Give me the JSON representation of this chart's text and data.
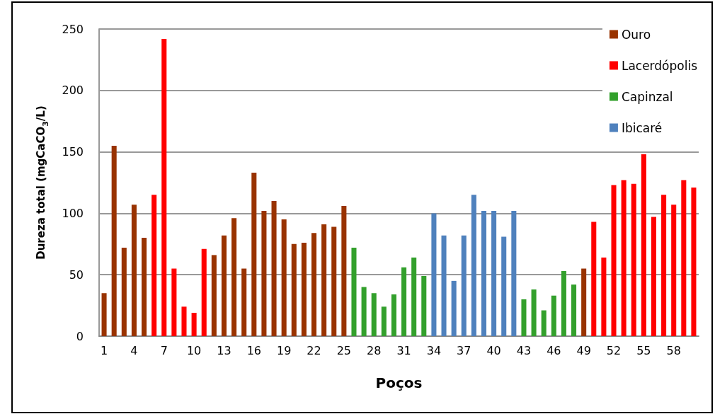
{
  "chart_data": {
    "type": "bar",
    "xlabel": "Poços",
    "ylabel": "Dureza total (mgCaCO$_{3}$/L)",
    "categories": [
      "1",
      null,
      null,
      "4",
      null,
      null,
      "7",
      null,
      null,
      "10",
      null,
      null,
      "13",
      null,
      null,
      "16",
      null,
      null,
      "19",
      null,
      null,
      "22",
      null,
      null,
      "25",
      null,
      null,
      "28",
      null,
      null,
      "31",
      null,
      null,
      "34",
      null,
      null,
      "37",
      null,
      null,
      "40",
      null,
      null,
      "43",
      null,
      null,
      "46",
      null,
      null,
      "49",
      null,
      null,
      "52",
      null,
      null,
      "55",
      null,
      null,
      "58",
      null,
      null
    ],
    "series": [
      {
        "name": "Ouro",
        "color": "#993300",
        "values": [
          35,
          155,
          72,
          107,
          80,
          null,
          null,
          null,
          null,
          null,
          null,
          66,
          82,
          96,
          55,
          133,
          102,
          110,
          95,
          75,
          76,
          84,
          91,
          89,
          106,
          null,
          null,
          null,
          null,
          null,
          null,
          null,
          null,
          null,
          null,
          null,
          null,
          null,
          null,
          null,
          null,
          null,
          null,
          null,
          null,
          null,
          null,
          null,
          55,
          null,
          null,
          null,
          null,
          null,
          null,
          null,
          null,
          null,
          null,
          null
        ]
      },
      {
        "name": "Lacerdópolis",
        "color": "#ff0000",
        "values": [
          null,
          null,
          null,
          null,
          null,
          115,
          242,
          55,
          24,
          19,
          71,
          null,
          null,
          null,
          null,
          null,
          null,
          null,
          null,
          null,
          null,
          null,
          null,
          null,
          null,
          null,
          null,
          null,
          null,
          null,
          null,
          null,
          null,
          null,
          null,
          null,
          null,
          null,
          null,
          null,
          null,
          null,
          null,
          null,
          null,
          null,
          null,
          null,
          null,
          93,
          64,
          123,
          127,
          124,
          148,
          97,
          115,
          107,
          127,
          121
        ]
      },
      {
        "name": "Capinzal",
        "color": "#33a02c",
        "values": [
          null,
          null,
          null,
          null,
          null,
          null,
          null,
          null,
          null,
          null,
          null,
          null,
          null,
          null,
          null,
          null,
          null,
          null,
          null,
          null,
          null,
          null,
          null,
          null,
          null,
          72,
          40,
          35,
          24,
          34,
          56,
          64,
          49,
          null,
          null,
          null,
          null,
          null,
          null,
          null,
          null,
          null,
          30,
          38,
          21,
          33,
          53,
          42,
          null,
          null,
          null,
          null,
          null,
          null,
          null,
          null,
          null,
          null,
          null,
          null
        ]
      },
      {
        "name": "Ibicaré",
        "color": "#4f81bd",
        "values": [
          null,
          null,
          null,
          null,
          null,
          null,
          null,
          null,
          null,
          null,
          null,
          null,
          null,
          null,
          null,
          null,
          null,
          null,
          null,
          null,
          null,
          null,
          null,
          null,
          null,
          null,
          null,
          null,
          null,
          null,
          null,
          null,
          null,
          100,
          82,
          45,
          82,
          115,
          102,
          102,
          81,
          102,
          null,
          null,
          null,
          null,
          null,
          null,
          null,
          null,
          null,
          null,
          null,
          null,
          null,
          null,
          null,
          null,
          null,
          null
        ]
      }
    ],
    "ylim": [
      0,
      250
    ],
    "yticks": [
      0,
      50,
      100,
      150,
      200,
      250
    ],
    "grid": "y",
    "legend": "top right"
  }
}
